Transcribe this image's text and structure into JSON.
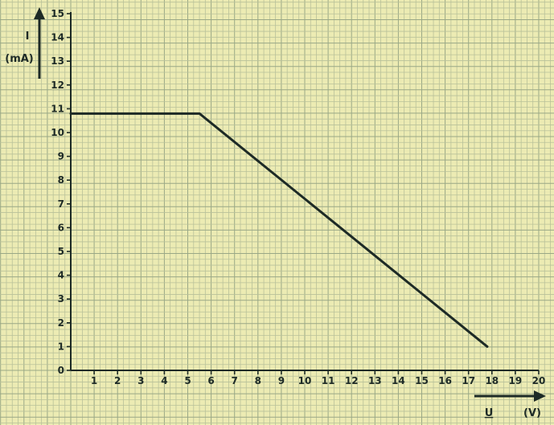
{
  "colors": {
    "background": "#ecebb3",
    "grid_minor": "#b9c19a",
    "grid_major": "#9aa886",
    "ink": "#1d2a26"
  },
  "chart_data": {
    "type": "line",
    "title": "",
    "xlabel_symbol": "U",
    "xlabel_unit": "(V)",
    "ylabel_symbol": "I",
    "ylabel_unit": "(mA)",
    "xlim": [
      0,
      20
    ],
    "ylim": [
      0,
      15
    ],
    "grid": true,
    "x_ticks": [
      "1",
      "2",
      "3",
      "4",
      "5",
      "6",
      "7",
      "8",
      "9",
      "10",
      "11",
      "12",
      "13",
      "14",
      "15",
      "16",
      "17",
      "18",
      "19",
      "20"
    ],
    "y_ticks": [
      "0",
      "1",
      "2",
      "3",
      "4",
      "5",
      "6",
      "7",
      "8",
      "9",
      "10",
      "11",
      "12",
      "13",
      "14",
      "15"
    ],
    "series": [
      {
        "points": [
          {
            "x": 0,
            "y": 10.8
          },
          {
            "x": 5.5,
            "y": 10.8
          },
          {
            "x": 17.8,
            "y": 1.0
          }
        ]
      }
    ]
  }
}
